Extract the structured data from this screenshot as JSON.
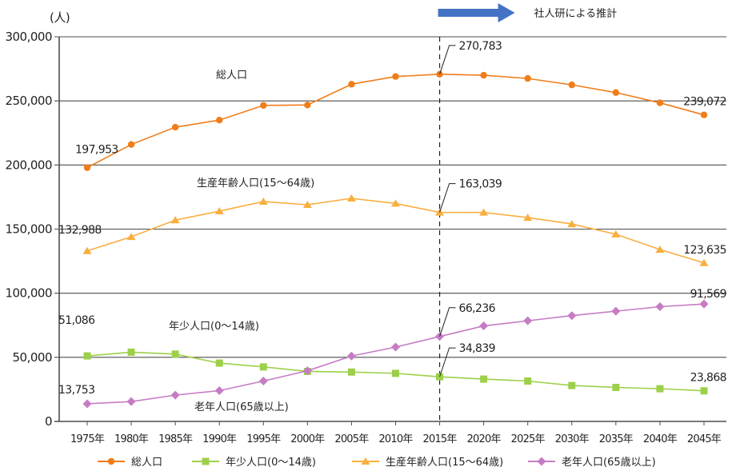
{
  "chart_data": {
    "type": "line",
    "title": "",
    "ylabel": "(人)",
    "xlabel": "",
    "ylim": [
      0,
      300000
    ],
    "yticks": [
      0,
      50000,
      100000,
      150000,
      200000,
      250000,
      300000
    ],
    "ytick_labels": [
      "0",
      "50,000",
      "100,000",
      "150,000",
      "200,000",
      "250,000",
      "300,000"
    ],
    "grid": "horizontal",
    "categories": [
      "1975年",
      "1980年",
      "1985年",
      "1990年",
      "1995年",
      "2000年",
      "2005年",
      "2010年",
      "2015年",
      "2020年",
      "2025年",
      "2030年",
      "2035年",
      "2040年",
      "2045年"
    ],
    "projection": {
      "start_category": "2015年",
      "label": "社人研による推計",
      "arrow_color": "#4472c4"
    },
    "series": [
      {
        "key": "total",
        "name": "総人口",
        "inline_label": "総人口",
        "color": "#f07d1a",
        "marker": "circle",
        "values": [
          197953,
          216000,
          229500,
          235000,
          246500,
          246800,
          263000,
          269000,
          270783,
          270000,
          267500,
          262500,
          256500,
          248500,
          239072
        ],
        "annotations": [
          {
            "index": 0,
            "text": "197,953"
          },
          {
            "index": 8,
            "text": "270,783",
            "leader": true
          },
          {
            "index": 14,
            "text": "239,072"
          }
        ]
      },
      {
        "key": "youth",
        "name": "年少人口(0〜14歳)",
        "inline_label": "年少人口(0〜14歳)",
        "color": "#9dd04a",
        "marker": "square",
        "values": [
          51086,
          54000,
          52500,
          45500,
          42500,
          39000,
          38500,
          37500,
          34839,
          33000,
          31500,
          28000,
          26500,
          25500,
          23868
        ],
        "annotations": [
          {
            "index": 0,
            "text": "51,086"
          },
          {
            "index": 8,
            "text": "34,839",
            "leader": true
          },
          {
            "index": 14,
            "text": "23,868"
          }
        ]
      },
      {
        "key": "working",
        "name": "生産年齢人口(15〜64歳)",
        "inline_label": "生産年齢人口(15〜64歳)",
        "color": "#f9ae3f",
        "marker": "triangle",
        "values": [
          132988,
          144000,
          157000,
          164000,
          171500,
          169000,
          174000,
          170000,
          163039,
          163000,
          159000,
          154000,
          146000,
          134000,
          123635
        ],
        "annotations": [
          {
            "index": 0,
            "text": "132,988"
          },
          {
            "index": 8,
            "text": "163,039",
            "leader": true
          },
          {
            "index": 14,
            "text": "123,635"
          }
        ]
      },
      {
        "key": "elderly",
        "name": "老年人口(65歳以上)",
        "inline_label": "老年人口(65歳以上)",
        "color": "#c67cc4",
        "marker": "diamond",
        "values": [
          13753,
          15500,
          20500,
          24000,
          31500,
          39500,
          51000,
          58000,
          66236,
          74500,
          78500,
          82500,
          86000,
          89500,
          91569
        ],
        "annotations": [
          {
            "index": 0,
            "text": "13,753"
          },
          {
            "index": 8,
            "text": "66,236",
            "leader": true
          },
          {
            "index": 14,
            "text": "91,569"
          }
        ]
      }
    ],
    "legend": {
      "position": "bottom",
      "order": [
        "total",
        "youth",
        "working",
        "elderly"
      ]
    }
  }
}
